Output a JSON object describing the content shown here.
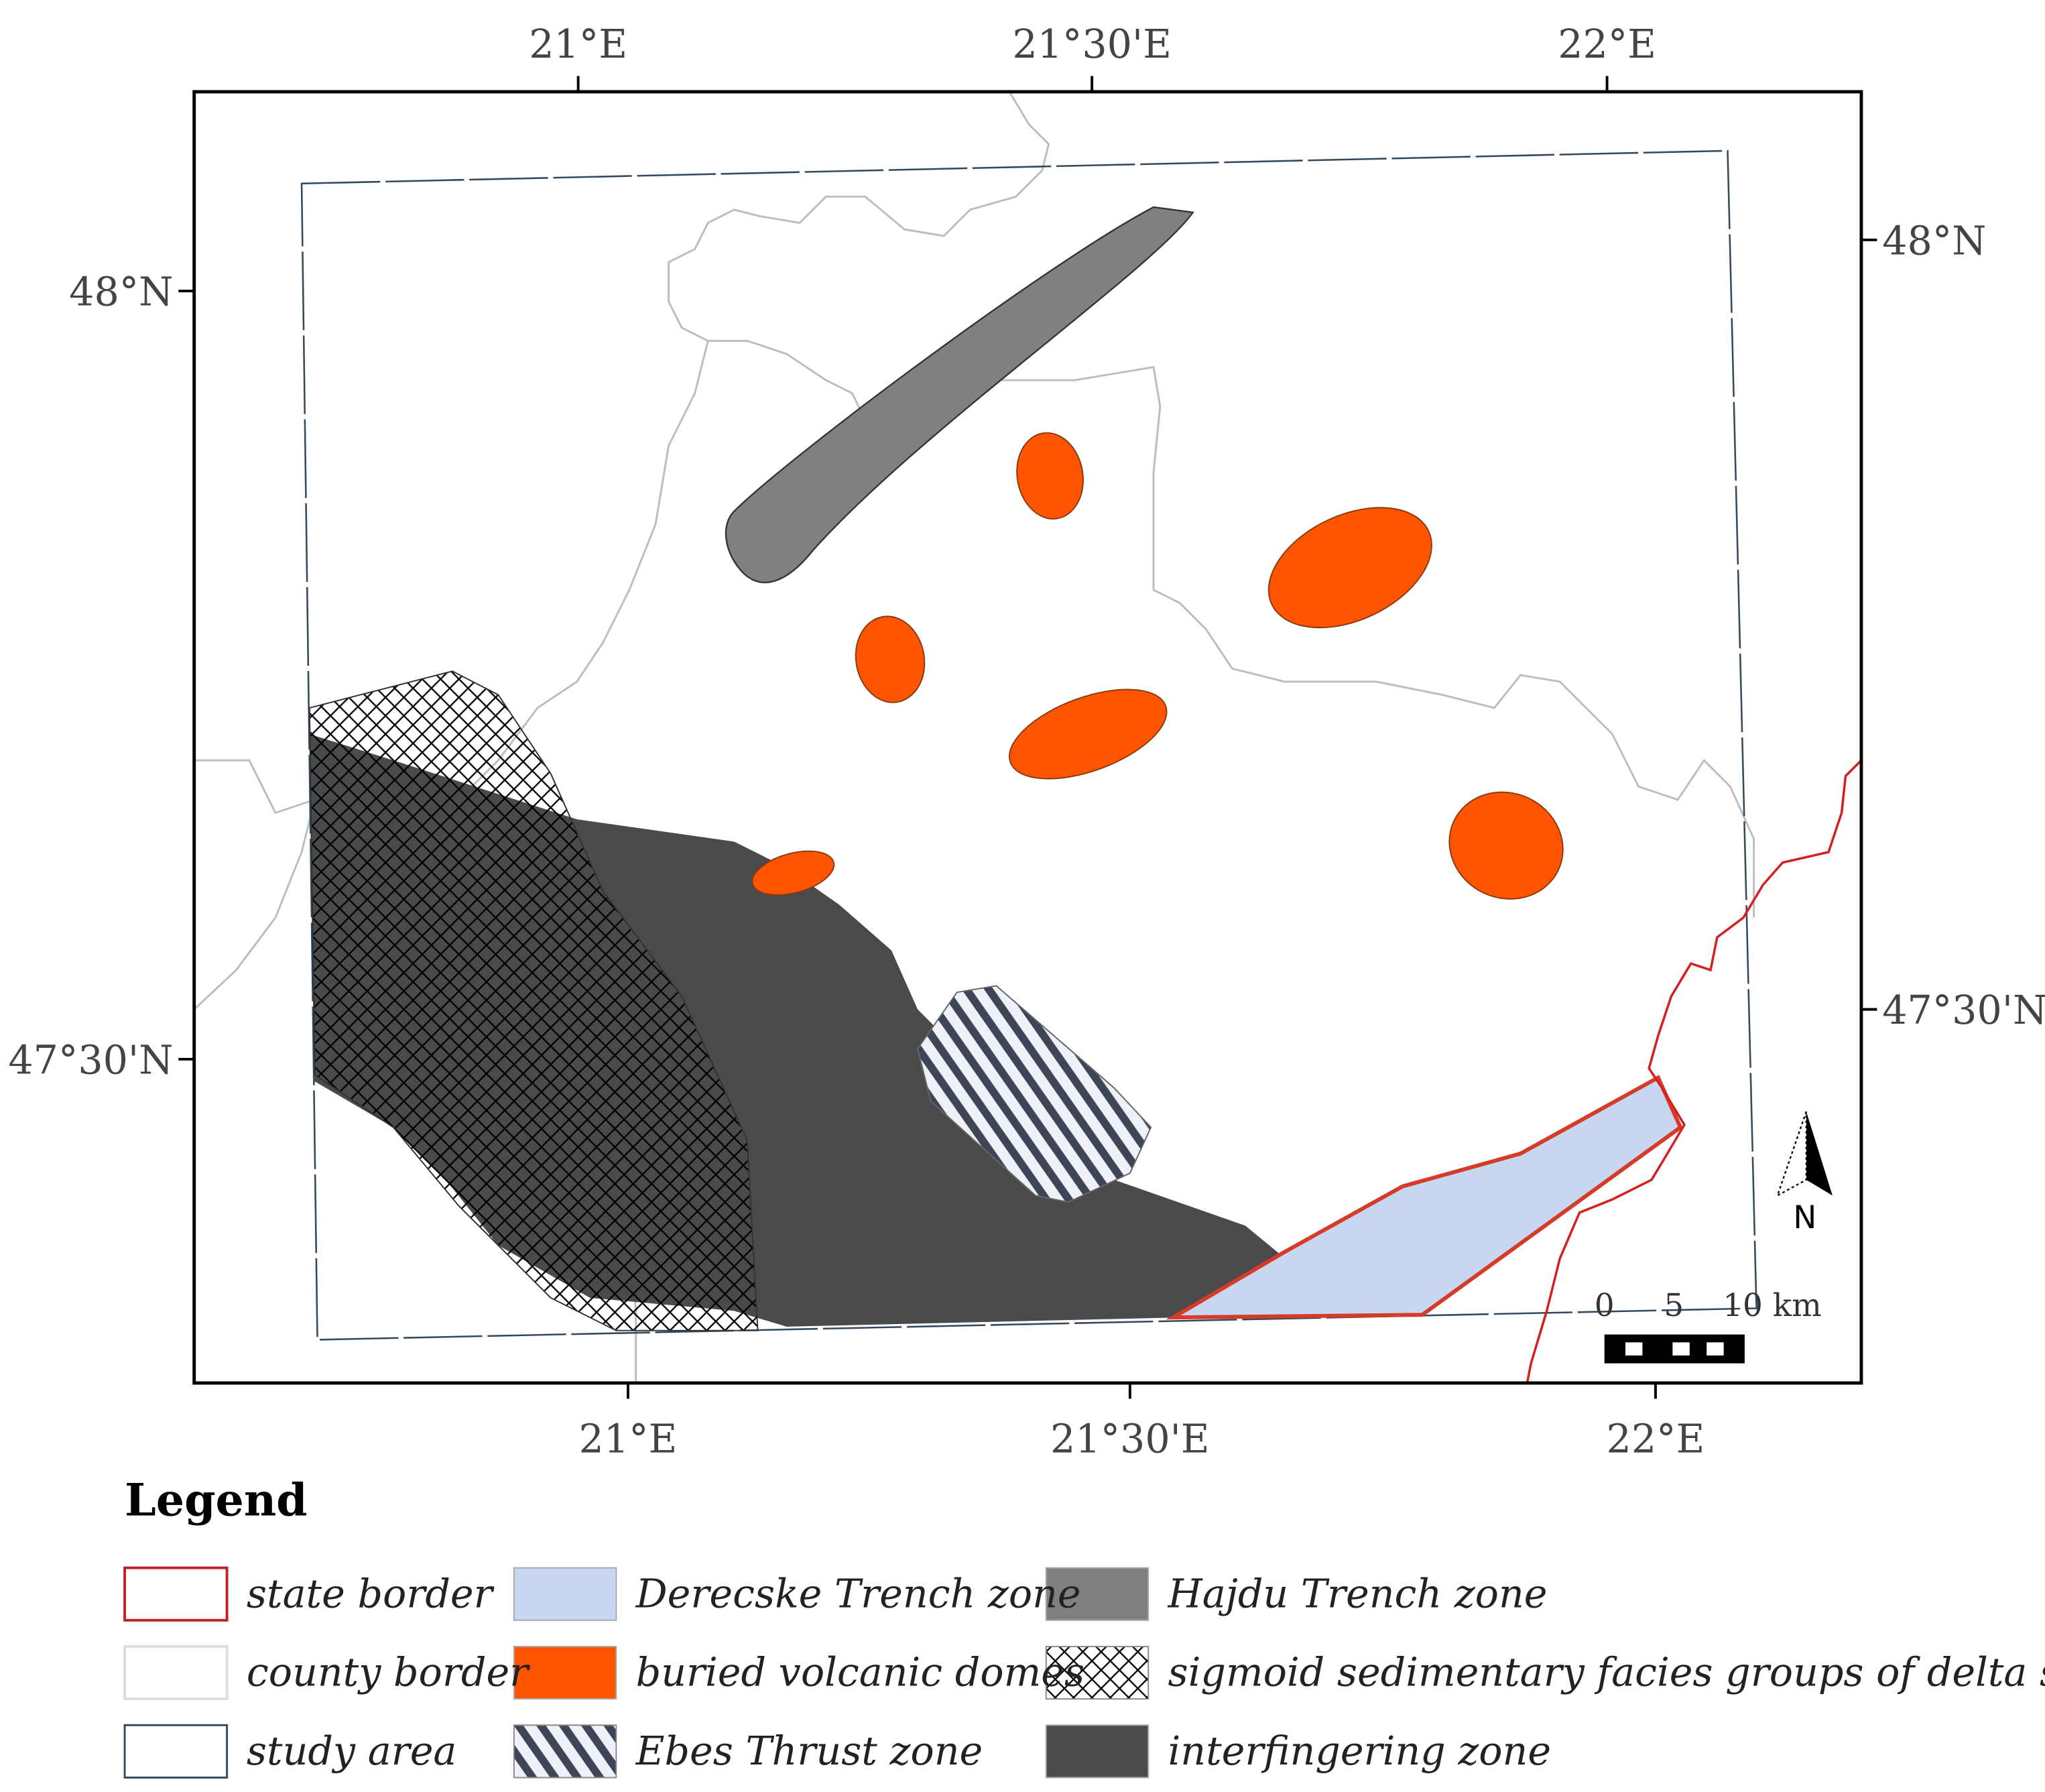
{
  "map": {
    "top_ticks": [
      "21°E",
      "21°30'E",
      "22°E"
    ],
    "bottom_ticks": [
      "21°E",
      "21°30'E",
      "22°E"
    ],
    "left_ticks": [
      "48°N",
      "47°30'N"
    ],
    "right_ticks": [
      "48°N",
      "47°30'N"
    ],
    "north": "N",
    "scale_bar": [
      "0",
      "5",
      "10 km"
    ]
  },
  "legend": {
    "title": "Legend",
    "items": [
      "state border",
      "county border",
      "study area",
      "Derecske Trench zone",
      "buried volcanic domes",
      "Ebes Thrust zone",
      "Hajdu Trench zone",
      "sigmoid sedimentary facies groups of delta slope",
      "interfingering zone"
    ]
  }
}
